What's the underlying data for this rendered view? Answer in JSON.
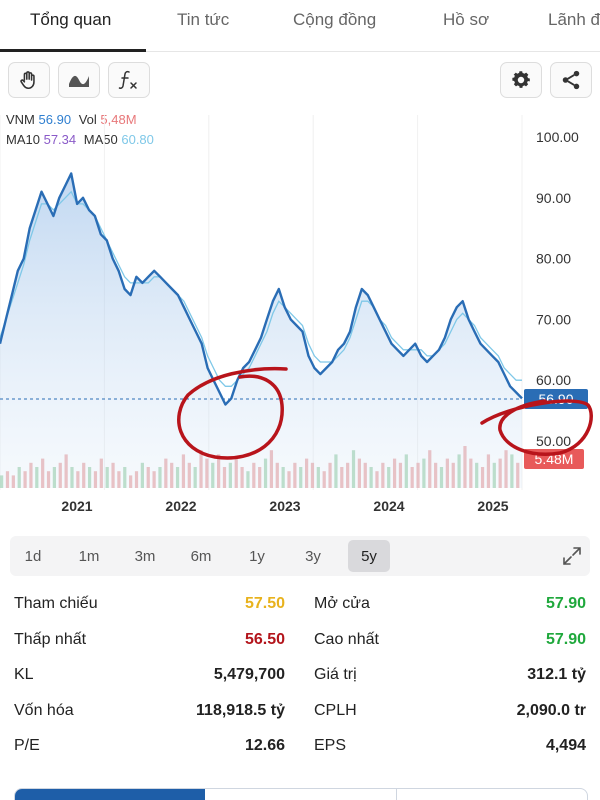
{
  "tabs": [
    "Tổng quan",
    "Tin tức",
    "Cộng đồng",
    "Hồ sơ",
    "Lãnh đ"
  ],
  "toolbar": {
    "left_icons": [
      "hand-icon",
      "wave-icon",
      "function-icon"
    ],
    "right_icons": [
      "gear-icon",
      "share-icon"
    ]
  },
  "legend": {
    "symbol": "VNM",
    "price": "56.90",
    "vol_label": "Vol",
    "vol_value": "5,48M",
    "ma10_label": "MA10",
    "ma10_value": "57.34",
    "ma50_label": "MA50",
    "ma50_value": "60.80"
  },
  "chart_data": {
    "type": "line",
    "title": "",
    "x_ticks": [
      "2021",
      "2022",
      "2023",
      "2024",
      "2025"
    ],
    "y_ticks": [
      "100.00",
      "90.00",
      "80.00",
      "70.00",
      "60.00",
      "50.00"
    ],
    "ylim": [
      44,
      102
    ],
    "current_price_tag": "56.90",
    "current_volume_tag": "5.48M",
    "series": [
      {
        "values": [
          66,
          70,
          74,
          78,
          80,
          85,
          88,
          91,
          89,
          87,
          90,
          92,
          94,
          89,
          90,
          88,
          87,
          84,
          83,
          80,
          78,
          75,
          74,
          77,
          76,
          77,
          78,
          77,
          76,
          75,
          74,
          72,
          70,
          68,
          66,
          62,
          60,
          58,
          56,
          57,
          60,
          62,
          63,
          65,
          67,
          70,
          73,
          75,
          72,
          70,
          69,
          68,
          64,
          62,
          61,
          62,
          63,
          65,
          66,
          68,
          72,
          75,
          74,
          72,
          70,
          68,
          66,
          65,
          64,
          65,
          66,
          64,
          63,
          64,
          65,
          67,
          70,
          72,
          73,
          70,
          68,
          66,
          65,
          64,
          63,
          61,
          59,
          58,
          57
        ]
      },
      {
        "values": [
          67,
          70,
          73,
          76,
          79,
          83,
          86,
          89,
          89,
          88,
          89,
          90,
          91,
          89,
          89,
          88,
          87,
          85,
          83,
          81,
          79,
          77,
          76,
          76,
          76,
          76,
          77,
          77,
          76,
          75,
          74,
          73,
          71,
          69,
          67,
          64,
          62,
          60,
          59,
          59,
          60,
          61,
          62,
          64,
          66,
          68,
          71,
          73,
          72,
          71,
          70,
          69,
          66,
          64,
          63,
          63,
          63,
          64,
          65,
          67,
          70,
          73,
          73,
          72,
          70,
          69,
          67,
          66,
          65,
          65,
          65,
          65,
          64,
          64,
          65,
          66,
          68,
          70,
          71,
          70,
          69,
          67,
          66,
          65,
          64,
          62,
          61,
          60,
          60
        ]
      }
    ],
    "volume": [
      3,
      4,
      3,
      5,
      4,
      6,
      5,
      7,
      4,
      5,
      6,
      8,
      5,
      4,
      6,
      5,
      4,
      7,
      5,
      6,
      4,
      5,
      3,
      4,
      6,
      5,
      4,
      5,
      7,
      6,
      5,
      8,
      6,
      5,
      9,
      7,
      6,
      8,
      5,
      6,
      7,
      5,
      4,
      6,
      5,
      7,
      9,
      6,
      5,
      4,
      6,
      5,
      7,
      6,
      5,
      4,
      6,
      8,
      5,
      6,
      9,
      7,
      6,
      5,
      4,
      6,
      5,
      7,
      6,
      8,
      5,
      6,
      7,
      9,
      6,
      5,
      7,
      6,
      8,
      10,
      7,
      6,
      5,
      8,
      6,
      7,
      9,
      8,
      6
    ],
    "annotations": [
      "hand-drawn red circle near 2022 low",
      "hand-drawn red circle near last price"
    ]
  },
  "periods": {
    "items": [
      "1d",
      "1m",
      "3m",
      "6m",
      "1y",
      "3y",
      "5y"
    ],
    "active": "5y"
  },
  "stats": [
    {
      "label_l": "Tham chiếu",
      "value_l": "57.50",
      "color_l": "yellow",
      "label_r": "Mở cửa",
      "value_r": "57.90",
      "color_r": "green"
    },
    {
      "label_l": "Thấp nhất",
      "value_l": "56.50",
      "color_l": "red",
      "label_r": "Cao nhất",
      "value_r": "57.90",
      "color_r": "green"
    },
    {
      "label_l": "KL",
      "value_l": "5,479,700",
      "color_l": "dark",
      "label_r": "Giá trị",
      "value_r": "312.1 tỷ",
      "color_r": "dark"
    },
    {
      "label_l": "Vốn hóa",
      "value_l": "118,918.5 tỷ",
      "color_l": "dark",
      "label_r": "CPLH",
      "value_r": "2,090.0 tr",
      "color_r": "dark"
    },
    {
      "label_l": "P/E",
      "value_l": "12.66",
      "color_l": "dark",
      "label_r": "EPS",
      "value_r": "4,494",
      "color_r": "dark"
    }
  ]
}
